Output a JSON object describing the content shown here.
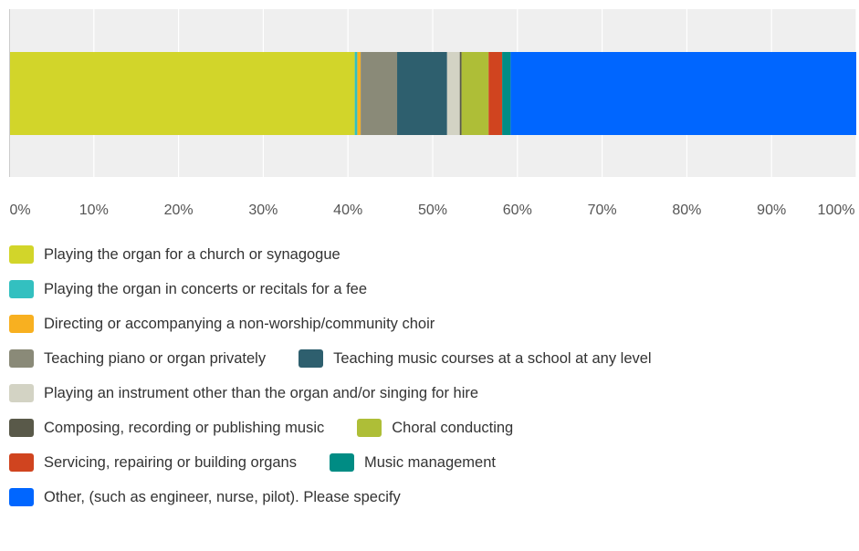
{
  "chart_data": {
    "type": "bar",
    "orientation": "horizontal",
    "stacked": true,
    "xlim": [
      0,
      100
    ],
    "x_ticks": [
      "0%",
      "10%",
      "20%",
      "30%",
      "40%",
      "50%",
      "60%",
      "70%",
      "80%",
      "90%",
      "100%"
    ],
    "grid": true,
    "legend_position": "bottom",
    "series": [
      {
        "name": "Playing the organ for a church or synagogue",
        "value": 40.8,
        "color": "#D2D52A"
      },
      {
        "name": "Playing the organ in concerts or recitals for a fee",
        "value": 0.3,
        "color": "#33C0C0"
      },
      {
        "name": "Directing or accompanying a non-worship/community choir",
        "value": 0.4,
        "color": "#F8B020"
      },
      {
        "name": "Teaching piano or organ privately",
        "value": 4.3,
        "color": "#8A8A78"
      },
      {
        "name": "Teaching music courses at a school at any level",
        "value": 5.9,
        "color": "#2E5F6E"
      },
      {
        "name": "Playing an instrument other than the organ and/or singing for hire",
        "value": 1.5,
        "color": "#D3D3C4"
      },
      {
        "name": "Composing, recording or publishing music",
        "value": 0.2,
        "color": "#595949"
      },
      {
        "name": "Choral conducting",
        "value": 3.2,
        "color": "#AEBE37"
      },
      {
        "name": "Servicing, repairing or building organs",
        "value": 1.6,
        "color": "#D0441F"
      },
      {
        "name": "Music management",
        "value": 1.0,
        "color": "#008C84"
      },
      {
        "name": "Other, (such as engineer, nurse, pilot). Please specify",
        "value": 40.8,
        "color": "#0066FF"
      }
    ]
  }
}
